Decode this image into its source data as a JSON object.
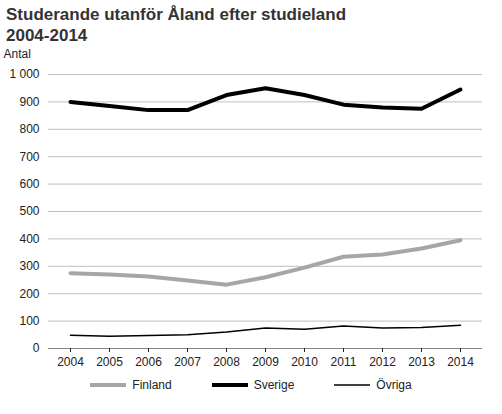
{
  "chart_data": {
    "type": "line",
    "title": "Studerande utanför Åland efter studieland\n2004-2014",
    "y_label": "Antal",
    "categories": [
      "2004",
      "2005",
      "2006",
      "2007",
      "2008",
      "2009",
      "2010",
      "2011",
      "2012",
      "2013",
      "2014"
    ],
    "series": [
      {
        "name": "Finland",
        "color": "#a6a6a6",
        "line_style": "thick",
        "values": [
          275,
          270,
          263,
          248,
          233,
          260,
          295,
          335,
          343,
          365,
          395
        ]
      },
      {
        "name": "Sverige",
        "color": "#000000",
        "line_style": "thick",
        "values": [
          900,
          885,
          870,
          870,
          925,
          950,
          925,
          890,
          880,
          875,
          945
        ]
      },
      {
        "name": "Övriga",
        "color": "#000000",
        "line_style": "thin",
        "values": [
          48,
          45,
          47,
          50,
          60,
          75,
          70,
          82,
          75,
          77,
          85
        ]
      }
    ],
    "ylim": [
      0,
      1000
    ],
    "yticks": [
      0,
      100,
      200,
      300,
      400,
      500,
      600,
      700,
      800,
      900,
      {
        "value": 1000,
        "label": "1 000"
      }
    ],
    "grid": true,
    "legend": "bottom"
  }
}
